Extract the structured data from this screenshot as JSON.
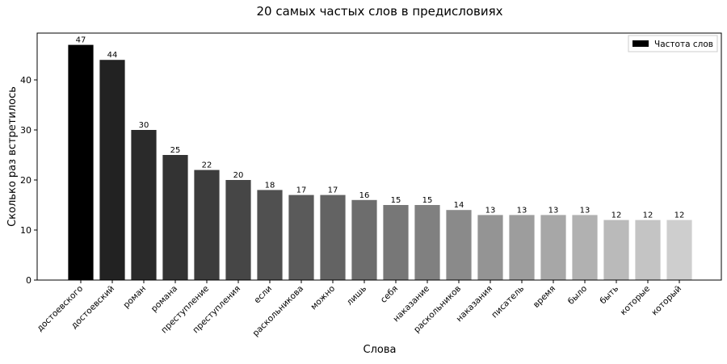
{
  "chart_data": {
    "type": "bar",
    "title": "20 самых частых слов в предисловиях",
    "xlabel": "Слова",
    "ylabel": "Сколько раз встретилось",
    "categories": [
      "достоевского",
      "достоевский",
      "роман",
      "романа",
      "преступление",
      "преступления",
      "если",
      "раскольникова",
      "можно",
      "лишь",
      "себя",
      "наказание",
      "раскольников",
      "наказания",
      "писатель",
      "время",
      "было",
      "быть",
      "которые",
      "который"
    ],
    "values": [
      47,
      44,
      30,
      25,
      22,
      20,
      18,
      17,
      17,
      16,
      15,
      15,
      14,
      13,
      13,
      13,
      13,
      12,
      12,
      12
    ],
    "bar_colors": [
      "#000000",
      "#222222",
      "#2a2a2a",
      "#333333",
      "#3c3c3c",
      "#464646",
      "#505050",
      "#5a5a5a",
      "#636363",
      "#6d6d6d",
      "#777777",
      "#808080",
      "#8a8a8a",
      "#949494",
      "#9d9d9d",
      "#a7a7a7",
      "#b1b1b1",
      "#bababa",
      "#c4c4c4",
      "#cecece"
    ],
    "ylim": [
      0,
      49.35
    ],
    "yticks": [
      0,
      10,
      20,
      30,
      40
    ],
    "legend": {
      "label": "Частота слов",
      "color": "#000000",
      "position": "top-right"
    },
    "grid": false
  }
}
